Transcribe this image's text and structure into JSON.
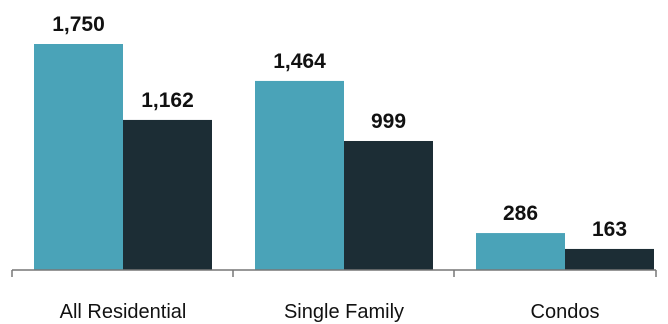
{
  "chart_data": {
    "type": "bar",
    "categories": [
      "All Residential",
      "Single Family",
      "Condos"
    ],
    "series": [
      {
        "values": [
          1750,
          1464,
          286
        ],
        "color": "#4aa3b8"
      },
      {
        "values": [
          1162,
          999,
          163
        ],
        "color": "#1c2d35"
      }
    ],
    "value_labels": [
      [
        "1,750",
        "1,464",
        "286"
      ],
      [
        "1,162",
        "999",
        "163"
      ]
    ],
    "ylim": [
      0,
      2000
    ],
    "grid": false,
    "legend": "none",
    "axis_color": "#777777"
  }
}
